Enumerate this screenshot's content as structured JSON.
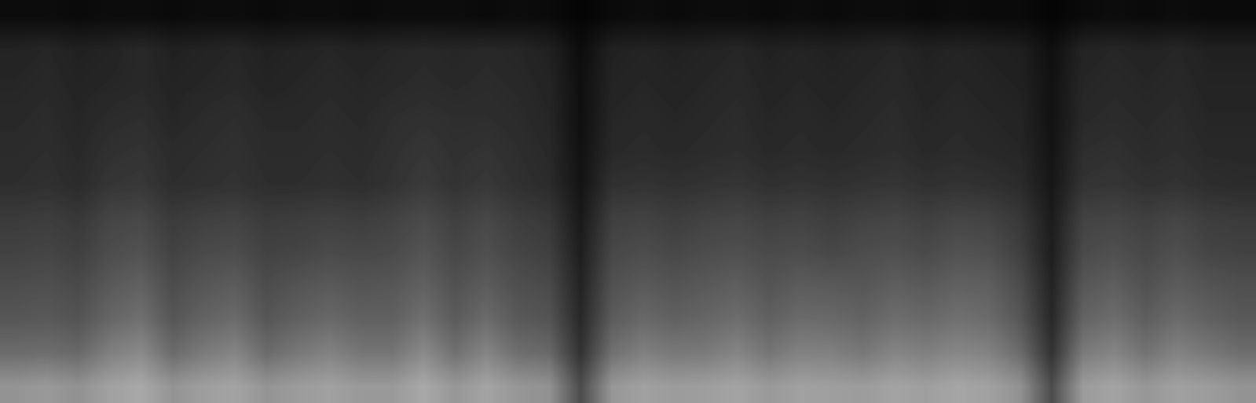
{
  "chart_data": {
    "type": "heatmap",
    "tick_labels": false,
    "grid": false,
    "color_range": [
      0,
      100
    ],
    "cells": [
      [
        5,
        5,
        4,
        5,
        5,
        4,
        5,
        5,
        4,
        5,
        5,
        4,
        5,
        5,
        5,
        4,
        5,
        4,
        2,
        4,
        5,
        4,
        5,
        5,
        4,
        5,
        4,
        5,
        5,
        4,
        5,
        4,
        4,
        2,
        4,
        5,
        4,
        5,
        4,
        4
      ],
      [
        14,
        15,
        13,
        14,
        16,
        13,
        14,
        15,
        13,
        14,
        15,
        14,
        15,
        16,
        15,
        16,
        15,
        13,
        5,
        13,
        14,
        13,
        14,
        15,
        13,
        14,
        13,
        14,
        15,
        13,
        14,
        13,
        12,
        6,
        14,
        15,
        14,
        15,
        13,
        13
      ],
      [
        15,
        16,
        14,
        15,
        16,
        14,
        15,
        16,
        14,
        15,
        16,
        15,
        16,
        17,
        16,
        17,
        16,
        14,
        6,
        14,
        15,
        14,
        15,
        16,
        14,
        15,
        14,
        15,
        16,
        14,
        15,
        14,
        13,
        7,
        15,
        16,
        15,
        16,
        14,
        14
      ],
      [
        16,
        17,
        15,
        17,
        18,
        15,
        17,
        18,
        16,
        16,
        17,
        16,
        18,
        19,
        18,
        18,
        17,
        15,
        6,
        15,
        16,
        15,
        16,
        17,
        15,
        16,
        15,
        16,
        17,
        15,
        16,
        15,
        14,
        7,
        16,
        17,
        16,
        17,
        15,
        15
      ],
      [
        17,
        18,
        16,
        19,
        20,
        17,
        18,
        19,
        17,
        17,
        18,
        17,
        19,
        21,
        19,
        20,
        18,
        16,
        7,
        16,
        17,
        16,
        17,
        18,
        16,
        17,
        16,
        17,
        18,
        16,
        17,
        16,
        15,
        8,
        18,
        19,
        17,
        18,
        16,
        16
      ],
      [
        18,
        19,
        17,
        21,
        22,
        18,
        19,
        20,
        18,
        18,
        19,
        18,
        20,
        23,
        20,
        22,
        19,
        17,
        8,
        19,
        20,
        19,
        20,
        21,
        19,
        20,
        19,
        20,
        21,
        19,
        20,
        19,
        17,
        9,
        20,
        21,
        19,
        20,
        18,
        17
      ],
      [
        23,
        24,
        22,
        27,
        28,
        23,
        25,
        26,
        23,
        24,
        25,
        24,
        26,
        29,
        25,
        28,
        24,
        22,
        10,
        25,
        26,
        24,
        26,
        27,
        25,
        26,
        24,
        26,
        27,
        25,
        27,
        26,
        22,
        11,
        26,
        27,
        25,
        27,
        24,
        23
      ],
      [
        26,
        27,
        25,
        30,
        32,
        26,
        29,
        30,
        26,
        27,
        29,
        28,
        29,
        33,
        28,
        31,
        27,
        25,
        12,
        28,
        30,
        28,
        30,
        31,
        29,
        30,
        28,
        30,
        31,
        29,
        32,
        31,
        25,
        12,
        29,
        31,
        28,
        31,
        27,
        26
      ],
      [
        30,
        31,
        29,
        35,
        38,
        30,
        34,
        36,
        30,
        33,
        35,
        33,
        34,
        38,
        32,
        36,
        31,
        29,
        14,
        32,
        35,
        33,
        35,
        37,
        33,
        36,
        35,
        34,
        37,
        35,
        38,
        37,
        30,
        14,
        34,
        37,
        32,
        36,
        33,
        31
      ],
      [
        34,
        35,
        33,
        40,
        44,
        34,
        39,
        42,
        34,
        38,
        41,
        38,
        38,
        44,
        36,
        42,
        35,
        33,
        16,
        36,
        41,
        38,
        40,
        43,
        38,
        42,
        41,
        39,
        43,
        41,
        44,
        42,
        34,
        16,
        39,
        43,
        37,
        42,
        38,
        35
      ],
      [
        42,
        43,
        41,
        50,
        54,
        42,
        48,
        52,
        42,
        47,
        51,
        46,
        46,
        54,
        44,
        52,
        43,
        41,
        20,
        44,
        50,
        47,
        48,
        52,
        46,
        51,
        50,
        47,
        52,
        50,
        53,
        51,
        42,
        20,
        48,
        52,
        45,
        51,
        47,
        43
      ],
      [
        58,
        60,
        57,
        63,
        66,
        58,
        62,
        64,
        58,
        61,
        63,
        60,
        60,
        66,
        59,
        64,
        59,
        57,
        30,
        59,
        63,
        61,
        62,
        64,
        60,
        63,
        62,
        61,
        64,
        62,
        65,
        63,
        57,
        30,
        61,
        64,
        59,
        63,
        61,
        58
      ]
    ]
  }
}
